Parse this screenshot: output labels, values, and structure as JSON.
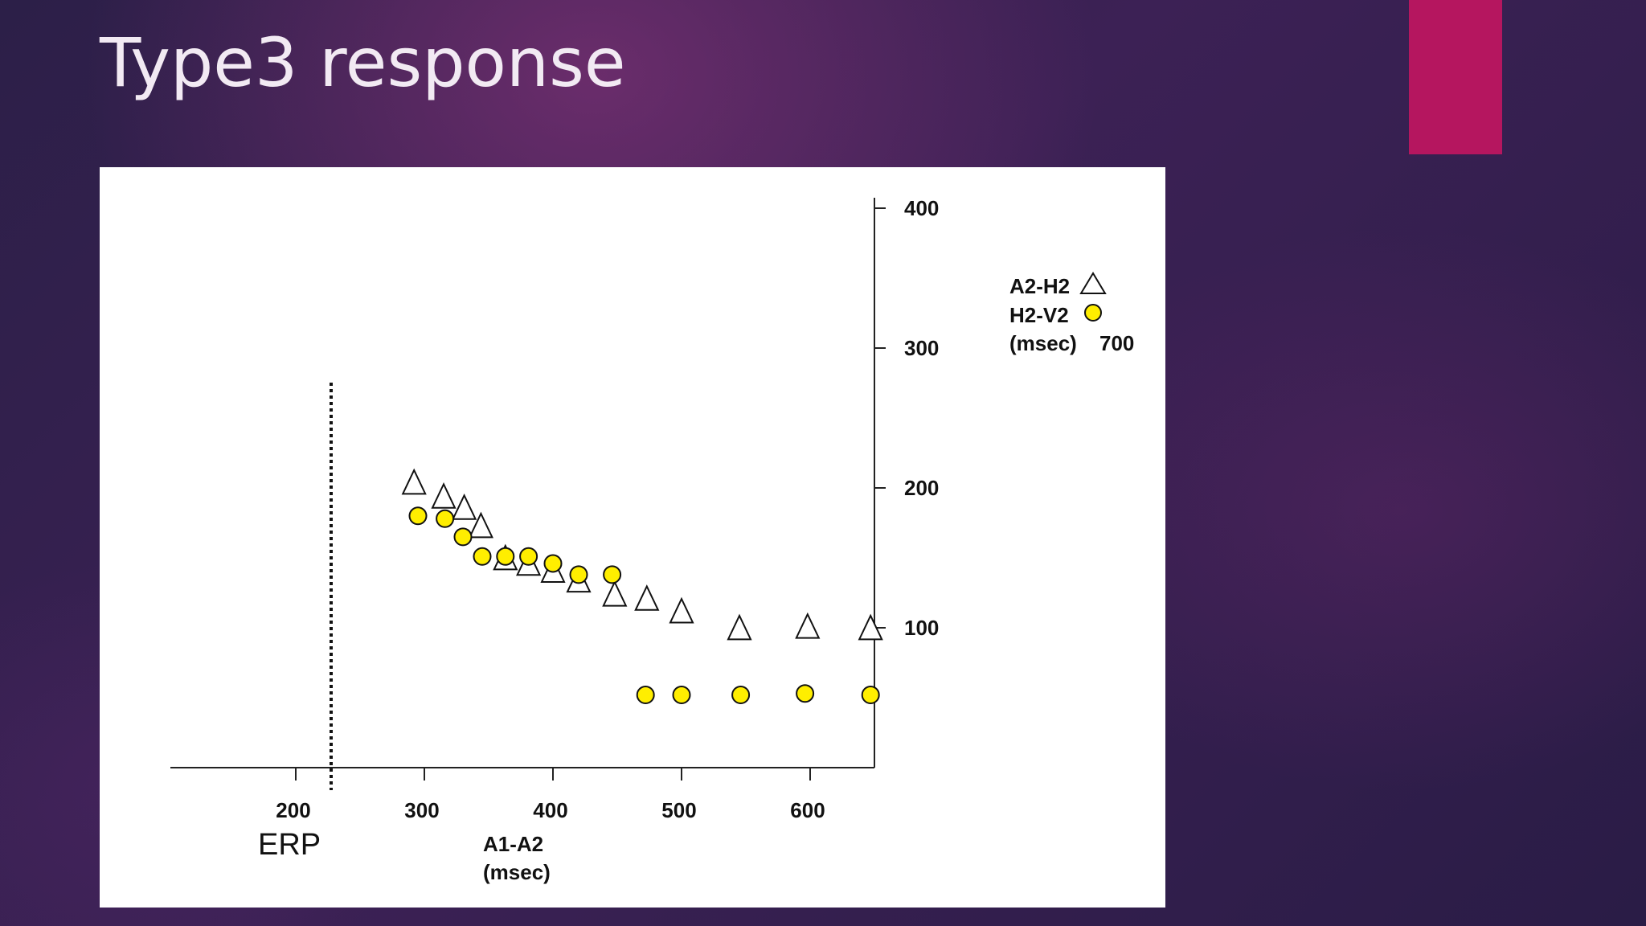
{
  "slide": {
    "title": "Type3 response",
    "accent_color": "#b5165f"
  },
  "chart_data": {
    "type": "scatter",
    "x": {
      "ticks": [
        200,
        300,
        400,
        500,
        600
      ],
      "range": [
        180,
        650
      ],
      "label_line1": "A1-A2",
      "label_line2": "(msec)"
    },
    "y": {
      "ticks": [
        100,
        200,
        300,
        400
      ],
      "range": [
        0,
        400
      ]
    },
    "erp": {
      "label": "ERP",
      "x": 225
    },
    "legend": {
      "line1": "A2-H2",
      "line2": "H2-V2",
      "line3_unit": "(msec)",
      "line3_value": "700",
      "placement": "top-right"
    },
    "series": [
      {
        "marker": "triangle",
        "color": "#ffffff",
        "x": [
          292,
          315,
          331,
          344,
          363,
          381,
          400,
          420,
          448,
          473,
          500,
          545,
          598,
          647
        ],
        "y": [
          203,
          193,
          185,
          172,
          149,
          145,
          140,
          133,
          123,
          120,
          111,
          99,
          100,
          99
        ]
      },
      {
        "marker": "circle",
        "color": "#ffee00",
        "x": [
          295,
          316,
          330,
          345,
          363,
          381,
          400,
          420,
          446,
          472,
          500,
          546,
          596,
          647
        ],
        "y": [
          180,
          178,
          165,
          151,
          151,
          151,
          146,
          138,
          138,
          52,
          52,
          52,
          53,
          52
        ]
      }
    ]
  }
}
